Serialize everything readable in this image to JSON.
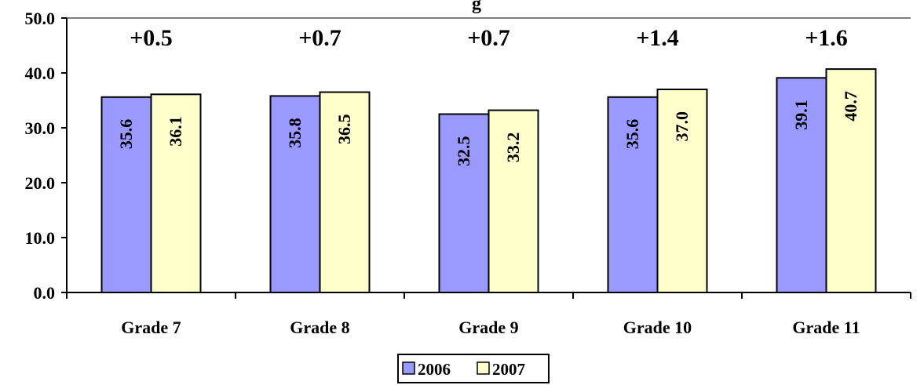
{
  "chart_data": {
    "type": "bar",
    "title": "",
    "title_fragment": "g",
    "categories": [
      "Grade 7",
      "Grade 8",
      "Grade 9",
      "Grade 10",
      "Grade 11"
    ],
    "series": [
      {
        "name": "2006",
        "values": [
          35.6,
          35.8,
          32.5,
          35.6,
          39.1
        ],
        "labels": [
          "35.6",
          "35.8",
          "32.5",
          "35.6",
          "39.1"
        ],
        "color": "#9999ff"
      },
      {
        "name": "2007",
        "values": [
          36.1,
          36.5,
          33.2,
          37.0,
          40.7
        ],
        "labels": [
          "36.1",
          "36.5",
          "33.2",
          "37.0",
          "40.7"
        ],
        "color": "#ffffcc"
      }
    ],
    "annotations": [
      "+0.5",
      "+0.7",
      "+0.7",
      "+1.4",
      "+1.6"
    ],
    "y_ticks": [
      "0.0",
      "10.0",
      "20.0",
      "30.0",
      "40.0",
      "50.0"
    ],
    "ylim": [
      0,
      50
    ],
    "xlabel": "",
    "ylabel": "",
    "legend_position": "bottom",
    "grid": false
  }
}
